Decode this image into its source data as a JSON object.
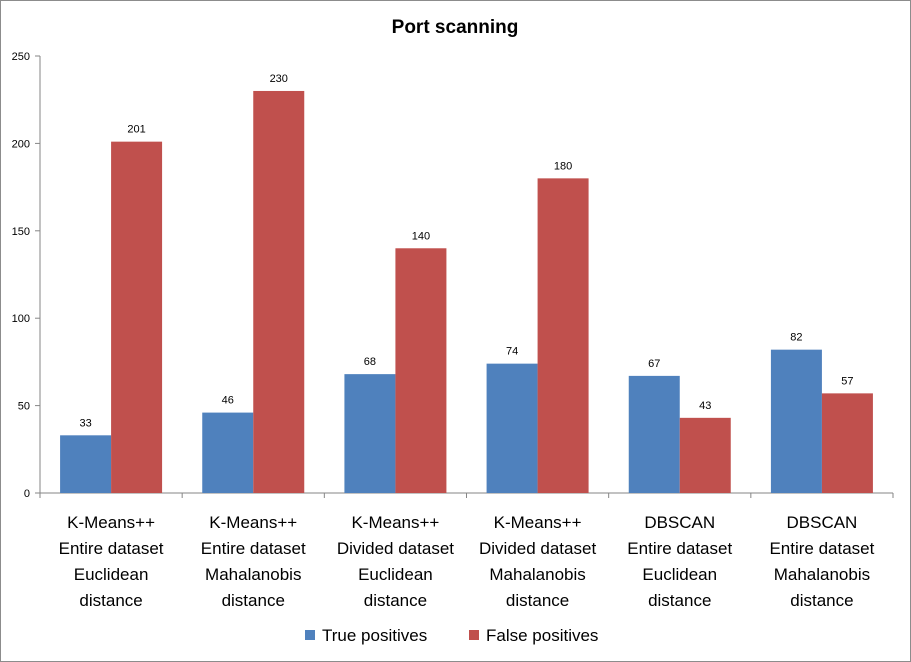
{
  "chart_data": {
    "type": "bar",
    "title": "Port scanning",
    "categories": [
      [
        "K-Means++",
        "Entire dataset",
        "Euclidean",
        "distance"
      ],
      [
        "K-Means++",
        "Entire dataset",
        "Mahalanobis",
        "distance"
      ],
      [
        "K-Means++",
        "Divided dataset",
        "Euclidean",
        "distance"
      ],
      [
        "K-Means++",
        "Divided dataset",
        "Mahalanobis",
        "distance"
      ],
      [
        "DBSCAN",
        "Entire dataset",
        "Euclidean",
        "distance"
      ],
      [
        "DBSCAN",
        "Entire dataset",
        "Mahalanobis",
        "distance"
      ]
    ],
    "series": [
      {
        "name": "True positives",
        "color": "#4f81bd",
        "values": [
          33,
          46,
          68,
          74,
          67,
          82
        ]
      },
      {
        "name": "False positives",
        "color": "#c0504d",
        "values": [
          201,
          230,
          140,
          180,
          43,
          57
        ]
      }
    ],
    "ylim": [
      0,
      250
    ],
    "yticks": [
      0,
      50,
      100,
      150,
      200,
      250
    ],
    "grid": false,
    "legend": "bottom"
  }
}
